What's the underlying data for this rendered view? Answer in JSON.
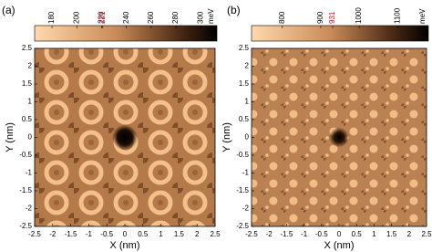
{
  "chart_data": [
    {
      "type": "heatmap",
      "panel_label": "(a)",
      "xlabel": "X (nm)",
      "ylabel": "Y (nm)",
      "xlim": [
        -2.5,
        2.5
      ],
      "ylim": [
        -2.5,
        2.5
      ],
      "xticks": [
        -2.5,
        -2,
        -1.5,
        -1,
        -0.5,
        0,
        0.5,
        1,
        1.5,
        2,
        2.5
      ],
      "yticks": [
        -2.5,
        -2,
        -1.5,
        -1,
        -0.5,
        0,
        0.5,
        1,
        1.5,
        2,
        2.5
      ],
      "colorbar_lim": [
        166,
        313
      ],
      "colorbar_ticks": [
        180,
        200,
        220,
        240,
        260,
        280,
        300
      ],
      "colorbar_unit": "meV",
      "colorbar_marker": {
        "value": 221,
        "color": "#d01010"
      }
    },
    {
      "type": "heatmap",
      "panel_label": "(b)",
      "xlabel": "X (nm)",
      "ylabel": "Y (nm)",
      "xlim": [
        -2.5,
        2.5
      ],
      "ylim": [
        -2.5,
        2.5
      ],
      "xticks": [
        -2.5,
        -2,
        -1.5,
        -1,
        -0.5,
        0,
        0.5,
        1,
        1.5,
        2,
        2.5
      ],
      "yticks": [
        -2.5,
        -2,
        -1.5,
        -1,
        -0.5,
        0,
        0.5,
        1,
        1.5,
        2,
        2.5
      ],
      "colorbar_lim": [
        720,
        1180
      ],
      "colorbar_ticks": [
        800,
        900,
        1000,
        1100
      ],
      "colorbar_unit": "meV",
      "colorbar_marker": {
        "value": 931,
        "color": "#d01010"
      }
    }
  ]
}
